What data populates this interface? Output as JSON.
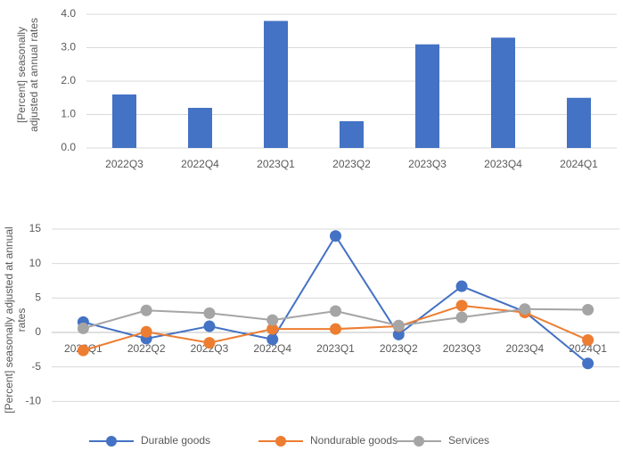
{
  "chart_data": [
    {
      "type": "bar",
      "y_label": "[Percent] seasonally adjusted at annual rates",
      "categories": [
        "2022Q3",
        "2022Q4",
        "2023Q1",
        "2023Q2",
        "2023Q3",
        "2023Q4",
        "2024Q1"
      ],
      "values": [
        1.6,
        1.2,
        3.8,
        0.8,
        3.1,
        3.3,
        1.5
      ],
      "color": "#4472c4",
      "ylim": [
        0,
        4
      ],
      "yticks": [
        {
          "value": 0,
          "label": "0.0"
        },
        {
          "value": 1,
          "label": "1.0"
        },
        {
          "value": 2,
          "label": "2.0"
        },
        {
          "value": 3,
          "label": "3.0"
        },
        {
          "value": 4,
          "label": "4.0"
        }
      ],
      "grid": true
    },
    {
      "type": "line",
      "y_label": "[Percent] seasonally adjusted at annual rates",
      "categories": [
        "2022Q1",
        "2022Q2",
        "2022Q3",
        "2022Q4",
        "2023Q1",
        "2023Q2",
        "2023Q3",
        "2023Q4",
        "2024Q1"
      ],
      "series": [
        {
          "name": "Durable goods",
          "color": "#4472c4",
          "values": [
            1.5,
            -0.9,
            0.9,
            -1.0,
            14.0,
            -0.3,
            6.7,
            3.0,
            -4.5
          ]
        },
        {
          "name": "Nondurable goods",
          "color": "#ed7d31",
          "values": [
            -2.6,
            0.1,
            -1.5,
            0.5,
            0.5,
            0.9,
            3.9,
            2.9,
            -1.1
          ]
        },
        {
          "name": "Services",
          "color": "#a5a5a5",
          "values": [
            0.6,
            3.2,
            2.8,
            1.8,
            3.1,
            1.0,
            2.2,
            3.4,
            3.3
          ]
        }
      ],
      "ylim": [
        -15,
        15
      ],
      "yticks": [
        -10,
        -5,
        0,
        5,
        10,
        15
      ],
      "grid": true,
      "legend": "bottom"
    }
  ]
}
